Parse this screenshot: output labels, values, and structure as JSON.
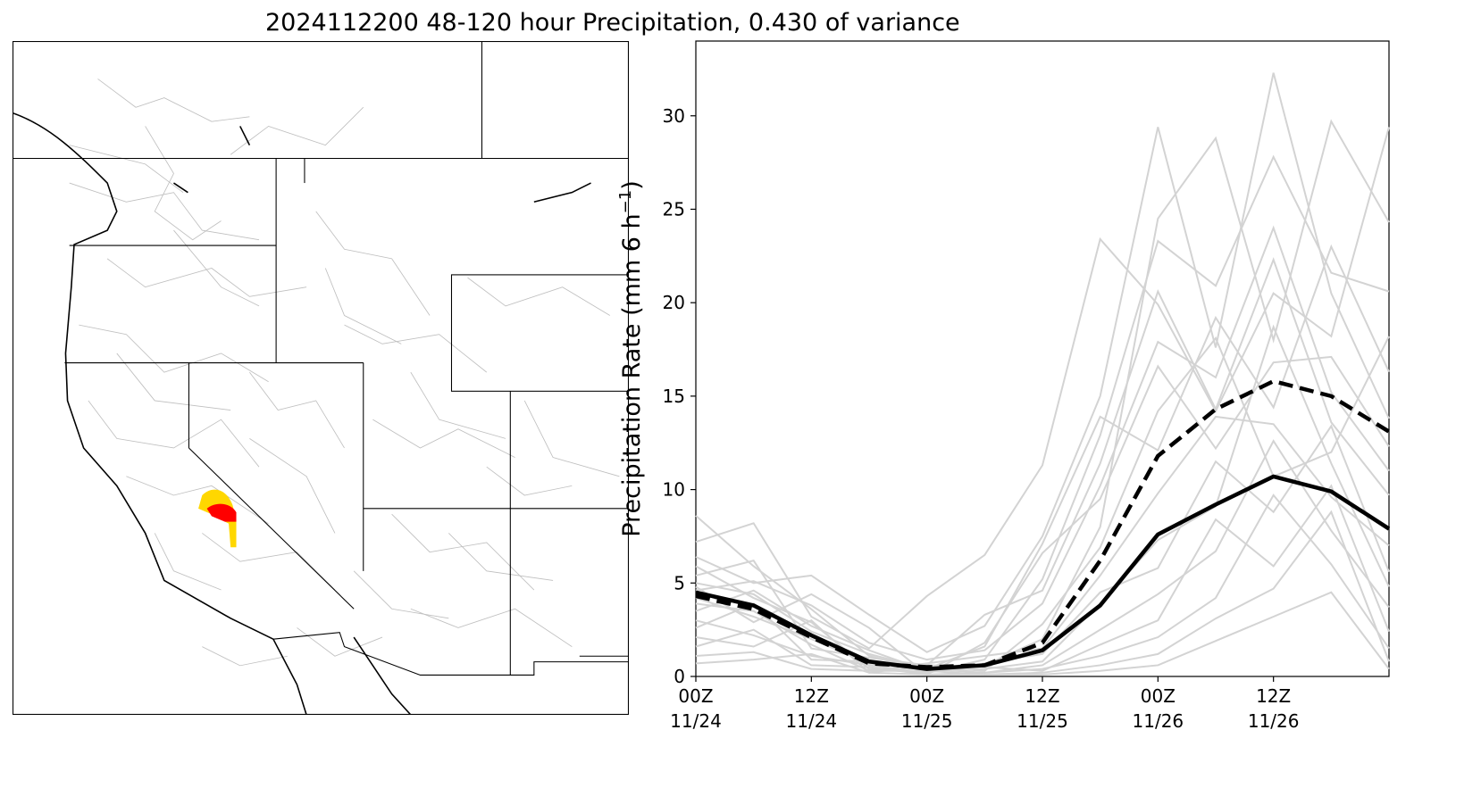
{
  "title": "2024112200 48-120 hour Precipitation, 0.430 of variance",
  "map": {
    "highlight_colors": {
      "high": "#ff0000",
      "mid": "#ffd700"
    },
    "boundary_color": "#000000",
    "basin_color": "#bfbfbf"
  },
  "chart_data": {
    "type": "line",
    "title": "",
    "xlabel": "",
    "ylabel": "Precipitation Rate (mm 6 h⁻¹)",
    "ylabel_main": "Precipitation Rate (mm 6 h",
    "ylabel_sup": "−1",
    "ylabel_end": ")",
    "ylim": [
      0,
      34
    ],
    "yticks": [
      0,
      5,
      10,
      15,
      20,
      25,
      30
    ],
    "x": [
      "11/24 00Z",
      "11/24 06Z",
      "11/24 12Z",
      "11/24 18Z",
      "11/25 00Z",
      "11/25 06Z",
      "11/25 12Z",
      "11/25 18Z",
      "11/26 00Z",
      "11/26 06Z",
      "11/26 12Z",
      "11/26 18Z",
      "11/27 00Z"
    ],
    "xticks": [
      {
        "line1": "00Z",
        "line2": "11/24",
        "index": 0
      },
      {
        "line1": "12Z",
        "line2": "11/24",
        "index": 2
      },
      {
        "line1": "00Z",
        "line2": "11/25",
        "index": 4
      },
      {
        "line1": "12Z",
        "line2": "11/25",
        "index": 6
      },
      {
        "line1": "00Z",
        "line2": "11/26",
        "index": 8
      },
      {
        "line1": "12Z",
        "line2": "11/26",
        "index": 10
      }
    ],
    "grid": false,
    "colors": {
      "members": "#d3d3d3",
      "main": "#000000"
    },
    "series": [
      {
        "style": "solid-bold",
        "values": [
          4.5,
          3.8,
          2.2,
          0.8,
          0.4,
          0.6,
          1.4,
          3.8,
          7.6,
          9.2,
          10.7,
          9.9,
          7.9
        ]
      },
      {
        "style": "dashed-bold",
        "values": [
          4.3,
          3.6,
          2.1,
          0.7,
          0.5,
          0.6,
          1.8,
          6.2,
          11.8,
          14.3,
          15.8,
          15.0,
          13.1
        ]
      }
    ],
    "members": [
      [
        8.6,
        5.9,
        3.6,
        1.1,
        0.3,
        0.6,
        2.0,
        8.0,
        24.5,
        28.8,
        18.0,
        29.7,
        24.3
      ],
      [
        7.2,
        8.2,
        3.2,
        1.5,
        4.3,
        6.5,
        11.3,
        23.4,
        19.9,
        14.2,
        20.5,
        18.2,
        29.4
      ],
      [
        6.4,
        5.0,
        5.4,
        3.3,
        1.3,
        2.7,
        7.5,
        15.0,
        29.4,
        17.6,
        32.3,
        20.5,
        13.8
      ],
      [
        5.9,
        4.2,
        2.9,
        0.4,
        0.2,
        0.9,
        5.2,
        12.9,
        23.3,
        20.9,
        27.8,
        21.6,
        20.6
      ],
      [
        5.4,
        6.2,
        1.5,
        1.0,
        0.6,
        3.3,
        4.6,
        11.4,
        20.6,
        14.3,
        22.3,
        13.6,
        9.7
      ],
      [
        4.8,
        2.9,
        4.4,
        2.6,
        0.1,
        1.8,
        6.6,
        9.5,
        16.6,
        12.2,
        16.8,
        17.1,
        12.3
      ],
      [
        4.2,
        3.2,
        2.0,
        0.7,
        0.5,
        0.3,
        2.8,
        6.9,
        14.2,
        18.1,
        10.7,
        12.0,
        18.2
      ],
      [
        3.9,
        3.5,
        1.7,
        0.3,
        0.7,
        1.1,
        1.5,
        5.4,
        9.8,
        13.9,
        13.5,
        9.6,
        7.0
      ],
      [
        3.5,
        4.6,
        2.7,
        1.4,
        0.3,
        0.4,
        0.8,
        3.9,
        7.3,
        9.1,
        18.7,
        11.4,
        4.8
      ],
      [
        3.0,
        2.2,
        1.1,
        0.6,
        0.2,
        0.7,
        1.2,
        4.5,
        5.8,
        11.5,
        8.8,
        13.4,
        5.6
      ],
      [
        2.6,
        3.9,
        0.9,
        0.8,
        0.4,
        0.2,
        0.6,
        2.5,
        4.4,
        6.7,
        12.6,
        7.8,
        3.7
      ],
      [
        2.1,
        1.6,
        3.0,
        0.2,
        0.6,
        0.5,
        0.3,
        1.7,
        3.0,
        8.4,
        5.9,
        10.2,
        2.4
      ],
      [
        1.6,
        2.5,
        0.6,
        0.5,
        0.1,
        0.2,
        0.4,
        1.1,
        2.1,
        4.2,
        9.7,
        6.0,
        1.5
      ],
      [
        1.1,
        1.3,
        0.4,
        0.3,
        0.3,
        0.1,
        0.2,
        0.6,
        1.2,
        3.1,
        4.7,
        8.8,
        0.8
      ],
      [
        0.7,
        0.9,
        1.2,
        0.2,
        0.1,
        0.1,
        0.1,
        0.3,
        0.6,
        1.9,
        3.2,
        4.5,
        0.4
      ],
      [
        4.6,
        5.1,
        3.8,
        1.8,
        0.9,
        1.4,
        3.9,
        10.2,
        17.9,
        16.0,
        24.0,
        15.2,
        11.0
      ],
      [
        5.0,
        4.4,
        2.4,
        1.2,
        0.4,
        1.6,
        7.1,
        13.9,
        12.1,
        19.2,
        14.4,
        23.0,
        16.3
      ]
    ]
  }
}
